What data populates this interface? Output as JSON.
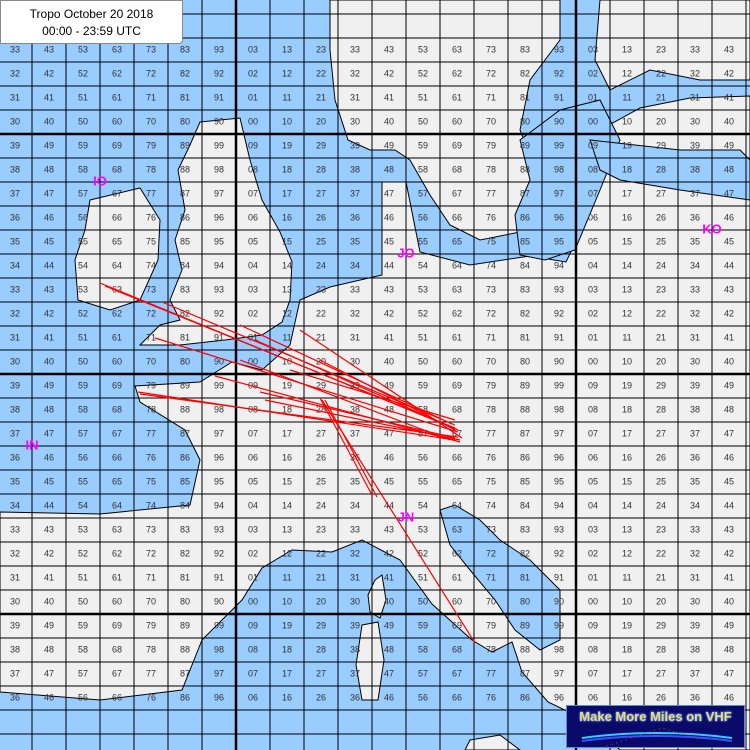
{
  "title": {
    "line1": "Tropo October 20  2018",
    "line2": "00:00 - 23:59 UTC"
  },
  "logo": {
    "text": "Make More Miles on VHF"
  },
  "colors": {
    "sea": "#99ccff",
    "land": "#f0f0f0",
    "grid": "#000000",
    "path": "#ff0000",
    "field_label": "#ff00ff"
  },
  "fields": [
    {
      "label": "IO"
    },
    {
      "label": "JO"
    },
    {
      "label": "KO"
    },
    {
      "label": "IN"
    },
    {
      "label": "JN"
    }
  ],
  "subsquare_rows": [
    "33 43 53 63 73 83 93 03 13 23 33 43 53 63 73 83 93 03 13 23 33 43",
    "32 42 52 62 72 82 92 02 12 22 32 42 52 62 72 82 92 02 12 22 32 42",
    "31 41 51 61 71 81 91 01 11 21 31 41 51 61 71 81 91 01 11 21 31 41",
    "30 40 50 60 70 80 90 00 10 20 30 40 50 60 70 80 90 00 10 20 30 40",
    "39 49 59 69 79 89 99 09 19 29 39 49 59 69 79 89 99 09 19 29 39 49",
    "38 48 58 68 78 88 98 08 18 28 38 48 58 68 78 88 98 08 18 28 38 48",
    "37 47 57 67 77 87 97 07 17 27 37 47 57 67 77 87 97 07 17 27 37 47",
    "36 46 56 66 76 86 96 06 16 26 36 46 56 66 76 86 96 06 16 26 36 46",
    "35 45 55 65 75 85 95 05 15 25 35 45 55 65 75 85 95 05 15 25 35 45",
    "34 44 54 64 74 84 94 04 14 24 34 44 54 64 74 84 94 04 14 24 34 44",
    "33 43 53 63 73 83 93 03 13 23 33 43 53 63 73 83 93 03 13 23 33 43",
    "32 42 52 62 72 82 92 02 12 22 32 42 52 62 72 82 92 02 12 22 32 42",
    "31 41 51 61 71 81 91 01 11 21 31 41 51 61 71 81 91 01 11 21 31 41",
    "30 40 50 60 70 80 90 00 10 20 30 40 50 60 70 80 90 00 10 20 30 40",
    "39 49 59 69 79 89 99 09 19 29 39 49 59 69 79 89 99 09 19 29 39 49",
    "38 48 58 68 78 88 98 08 18 28 38 48 58 68 78 88 98 08 18 28 38 48",
    "37 47 57 67 77 87 97 07 17 27 37 47 57 67 77 87 97 07 17 27 37 47",
    "36 46 56 66 76 86 96 06 16 26 36 46 56 66 76 86 96 06 16 26 36 46",
    "35 45 55 65 75 85 95 05 15 25 35 45 55 65 75 85 95 05 15 25 35 45",
    "34 44 54 64 74 84 94 04 14 24 34 44 54 64 74 84 94 04 14 24 34 44",
    "33 43 53 63 73 83 93 03 13 23 33 43 53 63 73 83 93 03 13 23 33 43",
    "32 42 52 62 72 82 92 02 12 22 32 42 52 62 72 82 92 02 12 22 32 42",
    "31 41 51 61 71 81 91 01 11 21 31 41 51 61 71 81 91 01 11 21 31 41",
    "30 40 50 60 70 80 90 00 10 20 30 40 50 60 70 80 90 00 10 20 30 40",
    "39 49 59 69 79 89 99 09 19 29 39 49 59 69 79 89 99 09 19 29 39 49",
    "38 48 58 68 78 88 98 08 18 28 38 48 58 68 78 88 98 08 18 28 38 48",
    "37 47 57 67 77 87 97 07 17 27 37 47 57 67 77 87 97 07 17 27 37 47",
    "36 46 56 66 76 86 96 06 16 26 36 46 56 66 76 86 96 06 16 26 36 46"
  ]
}
